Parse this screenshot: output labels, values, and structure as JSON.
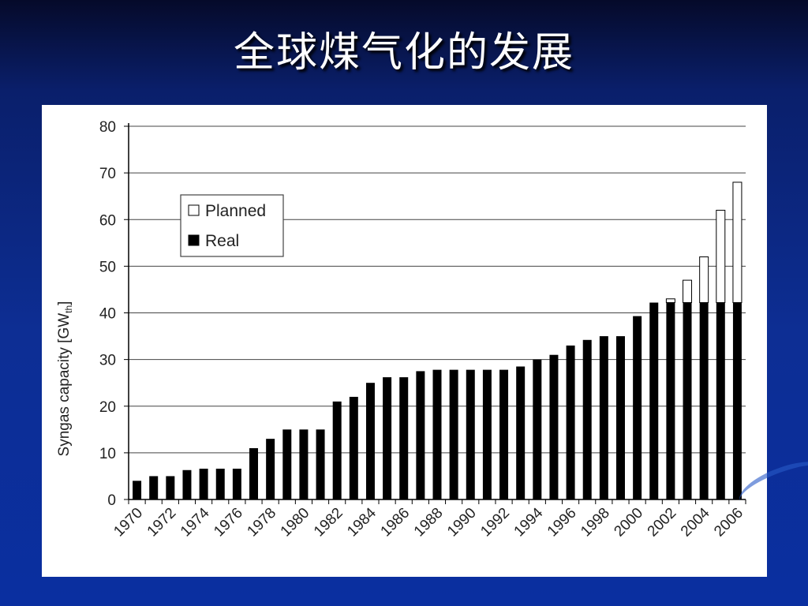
{
  "slide": {
    "title": "全球煤气化的发展"
  },
  "chart_data": {
    "type": "bar",
    "stacked": true,
    "title": "",
    "xlabel": "",
    "ylabel": "Syngas capacity [GWth]",
    "ylabel_main": "Syngas capacity [GW",
    "ylabel_sub": "th",
    "ylabel_end": "]",
    "ylim": [
      0,
      80
    ],
    "yticks": [
      0,
      10,
      20,
      30,
      40,
      50,
      60,
      70,
      80
    ],
    "grid": true,
    "legend_position": "top-left",
    "categories": [
      1970,
      1971,
      1972,
      1973,
      1974,
      1975,
      1976,
      1977,
      1978,
      1979,
      1980,
      1981,
      1982,
      1983,
      1984,
      1985,
      1986,
      1987,
      1988,
      1989,
      1990,
      1991,
      1992,
      1993,
      1994,
      1995,
      1996,
      1997,
      1998,
      1999,
      2000,
      2001,
      2002,
      2003,
      2004,
      2005,
      2006
    ],
    "xtick_labels": [
      "1970",
      "1972",
      "1974",
      "1976",
      "1978",
      "1980",
      "1982",
      "1984",
      "1986",
      "1988",
      "1990",
      "1992",
      "1994",
      "1996",
      "1998",
      "2000",
      "2002",
      "2004",
      "2006"
    ],
    "series": [
      {
        "name": "Real",
        "color": "#000000",
        "values": [
          4,
          5,
          5,
          6.3,
          6.6,
          6.6,
          6.6,
          11,
          13,
          15,
          15,
          15,
          21,
          22,
          25,
          26.2,
          26.2,
          27.5,
          27.8,
          27.8,
          27.8,
          27.8,
          27.8,
          28.5,
          30,
          31,
          33,
          34.2,
          35,
          35,
          39.3,
          42.2,
          42.2,
          42.2,
          42.2,
          42.2,
          42.2
        ]
      },
      {
        "name": "Planned",
        "color": "#ffffff",
        "values": [
          0,
          0,
          0,
          0,
          0,
          0,
          0,
          0,
          0,
          0,
          0,
          0,
          0,
          0,
          0,
          0,
          0,
          0,
          0,
          0,
          0,
          0,
          0,
          0,
          0,
          0,
          0,
          0,
          0,
          0,
          0,
          0,
          0.8,
          4.8,
          9.8,
          19.8,
          25.8
        ]
      }
    ]
  }
}
